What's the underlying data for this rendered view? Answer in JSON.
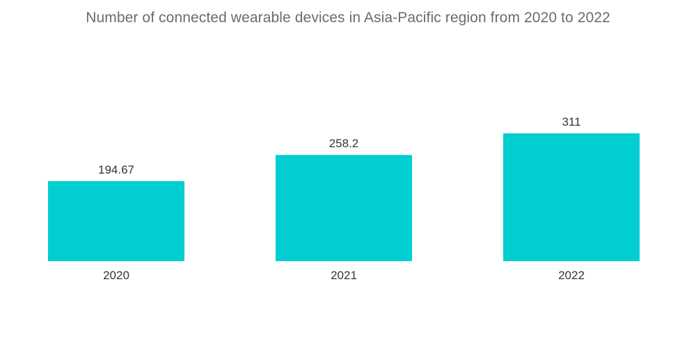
{
  "chart_data": {
    "type": "bar",
    "title": "Number of connected wearable devices in Asia-Pacific region from 2020 to 2022",
    "xlabel": "",
    "ylabel": "",
    "categories": [
      "2020",
      "2021",
      "2022"
    ],
    "values": [
      194.67,
      258.2,
      311
    ],
    "value_labels": [
      "194.67",
      "258.2",
      "311"
    ],
    "ylim": [
      0,
      311
    ],
    "grid": false,
    "legend": "none",
    "bar_color": "#00ced1"
  }
}
